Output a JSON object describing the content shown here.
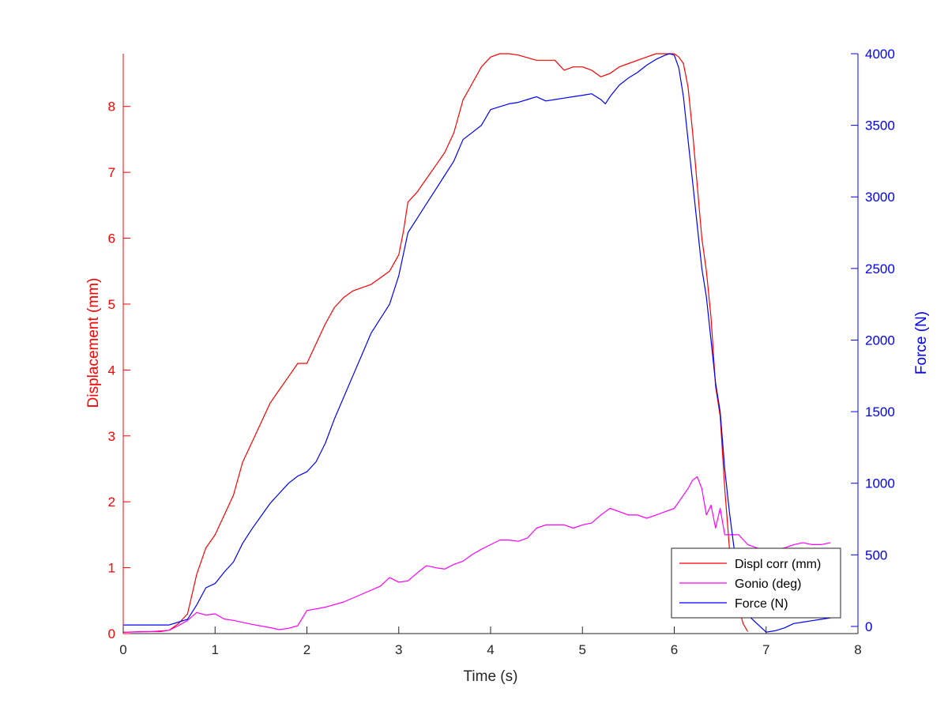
{
  "chart_data": {
    "type": "line",
    "title": "",
    "xlabel": "Time (s)",
    "ylabel_left": "Displacement (mm)",
    "ylabel_right": "Force (N)",
    "xlim": [
      0,
      8
    ],
    "ylim_left": [
      0,
      8.8
    ],
    "ylim_right": [
      -50,
      4000
    ],
    "x_ticks": [
      0,
      1,
      2,
      3,
      4,
      5,
      6,
      7,
      8
    ],
    "y_ticks_left": [
      0,
      1,
      2,
      3,
      4,
      5,
      6,
      7,
      8
    ],
    "y_ticks_right": [
      0,
      500,
      1000,
      1500,
      2000,
      2500,
      3000,
      3500,
      4000
    ],
    "grid": false,
    "legend_position": "bottom-right",
    "colors": {
      "left_axis": "#ff0000",
      "right_axis": "#0000ff",
      "axis": "#262626"
    },
    "series": [
      {
        "name": "Displ corr (mm)",
        "axis": "left",
        "color": "#ff0000",
        "x": [
          0,
          0.2,
          0.4,
          0.5,
          0.6,
          0.7,
          0.75,
          0.8,
          0.9,
          1.0,
          1.1,
          1.2,
          1.3,
          1.4,
          1.5,
          1.6,
          1.7,
          1.8,
          1.9,
          2.0,
          2.1,
          2.2,
          2.3,
          2.4,
          2.5,
          2.6,
          2.7,
          2.8,
          2.9,
          3.0,
          3.05,
          3.1,
          3.2,
          3.3,
          3.4,
          3.5,
          3.6,
          3.7,
          3.8,
          3.9,
          4.0,
          4.1,
          4.2,
          4.3,
          4.5,
          4.7,
          4.8,
          4.9,
          5.0,
          5.1,
          5.2,
          5.3,
          5.4,
          5.5,
          5.6,
          5.7,
          5.8,
          5.9,
          6.0,
          6.05,
          6.1,
          6.15,
          6.2,
          6.25,
          6.3,
          6.35,
          6.4,
          6.45,
          6.5,
          6.55,
          6.6,
          6.65,
          6.7,
          6.75,
          6.8
        ],
        "y": [
          0.02,
          0.03,
          0.03,
          0.05,
          0.15,
          0.3,
          0.6,
          0.9,
          1.3,
          1.5,
          1.8,
          2.1,
          2.6,
          2.9,
          3.2,
          3.5,
          3.7,
          3.9,
          4.1,
          4.1,
          4.4,
          4.7,
          4.95,
          5.1,
          5.2,
          5.25,
          5.3,
          5.4,
          5.5,
          5.75,
          6.1,
          6.55,
          6.7,
          6.9,
          7.1,
          7.3,
          7.6,
          8.1,
          8.35,
          8.6,
          8.75,
          8.8,
          8.8,
          8.78,
          8.7,
          8.7,
          8.55,
          8.6,
          8.6,
          8.55,
          8.45,
          8.5,
          8.6,
          8.65,
          8.7,
          8.75,
          8.8,
          8.8,
          8.8,
          8.75,
          8.65,
          8.3,
          7.6,
          6.8,
          6.0,
          5.5,
          4.8,
          3.75,
          3.3,
          2.2,
          1.3,
          0.8,
          0.4,
          0.15,
          0.03
        ]
      },
      {
        "name": "Gonio (deg)",
        "axis": "left",
        "color": "#ff00ff",
        "x": [
          0,
          0.3,
          0.5,
          0.6,
          0.7,
          0.8,
          0.9,
          1.0,
          1.1,
          1.2,
          1.4,
          1.6,
          1.7,
          1.8,
          1.9,
          2.0,
          2.2,
          2.4,
          2.6,
          2.8,
          2.9,
          3.0,
          3.1,
          3.2,
          3.3,
          3.4,
          3.5,
          3.6,
          3.7,
          3.8,
          3.9,
          4.0,
          4.1,
          4.2,
          4.3,
          4.4,
          4.5,
          4.6,
          4.7,
          4.8,
          4.9,
          5.0,
          5.1,
          5.2,
          5.3,
          5.4,
          5.5,
          5.6,
          5.7,
          5.8,
          5.9,
          6.0,
          6.1,
          6.15,
          6.2,
          6.25,
          6.3,
          6.35,
          6.4,
          6.45,
          6.5,
          6.55,
          6.6,
          6.7,
          6.8,
          6.9,
          7.0,
          7.1,
          7.2,
          7.3,
          7.4,
          7.5,
          7.6,
          7.7
        ],
        "y": [
          0.02,
          0.03,
          0.05,
          0.12,
          0.2,
          0.32,
          0.28,
          0.3,
          0.22,
          0.2,
          0.14,
          0.09,
          0.06,
          0.08,
          0.12,
          0.35,
          0.4,
          0.48,
          0.6,
          0.72,
          0.85,
          0.78,
          0.8,
          0.92,
          1.03,
          1.0,
          0.98,
          1.05,
          1.1,
          1.2,
          1.28,
          1.35,
          1.42,
          1.42,
          1.4,
          1.45,
          1.6,
          1.65,
          1.65,
          1.65,
          1.6,
          1.65,
          1.68,
          1.8,
          1.9,
          1.85,
          1.8,
          1.8,
          1.75,
          1.8,
          1.85,
          1.9,
          2.1,
          2.2,
          2.33,
          2.38,
          2.2,
          1.8,
          1.95,
          1.6,
          1.9,
          1.5,
          1.5,
          1.5,
          1.35,
          1.3,
          1.25,
          1.28,
          1.3,
          1.35,
          1.38,
          1.35,
          1.35,
          1.38
        ]
      },
      {
        "name": "Force (N)",
        "axis": "right",
        "color": "#0000ff",
        "x": [
          0,
          0.3,
          0.5,
          0.6,
          0.7,
          0.8,
          0.9,
          1.0,
          1.1,
          1.2,
          1.3,
          1.4,
          1.5,
          1.6,
          1.7,
          1.8,
          1.9,
          2.0,
          2.1,
          2.2,
          2.3,
          2.4,
          2.5,
          2.6,
          2.7,
          2.8,
          2.9,
          3.0,
          3.05,
          3.1,
          3.2,
          3.3,
          3.4,
          3.5,
          3.6,
          3.7,
          3.8,
          3.9,
          4.0,
          4.1,
          4.2,
          4.3,
          4.4,
          4.5,
          4.6,
          4.7,
          4.8,
          4.9,
          5.0,
          5.1,
          5.2,
          5.25,
          5.3,
          5.4,
          5.5,
          5.6,
          5.7,
          5.8,
          5.9,
          5.95,
          6.0,
          6.05,
          6.1,
          6.15,
          6.2,
          6.25,
          6.3,
          6.35,
          6.4,
          6.45,
          6.5,
          6.55,
          6.6,
          6.65,
          6.7,
          6.8,
          6.9,
          7.0,
          7.1,
          7.2,
          7.3,
          7.4,
          7.5,
          7.6,
          7.7
        ],
        "y": [
          10,
          10,
          10,
          30,
          50,
          150,
          270,
          300,
          380,
          450,
          580,
          680,
          770,
          860,
          930,
          1000,
          1050,
          1080,
          1150,
          1280,
          1450,
          1600,
          1750,
          1900,
          2050,
          2150,
          2250,
          2450,
          2600,
          2750,
          2850,
          2950,
          3050,
          3150,
          3250,
          3400,
          3450,
          3500,
          3610,
          3630,
          3650,
          3660,
          3680,
          3700,
          3670,
          3680,
          3690,
          3700,
          3710,
          3720,
          3680,
          3650,
          3700,
          3780,
          3830,
          3870,
          3920,
          3960,
          3990,
          4000,
          3990,
          3900,
          3700,
          3400,
          3100,
          2800,
          2500,
          2300,
          2000,
          1700,
          1500,
          1100,
          800,
          550,
          300,
          80,
          20,
          -40,
          -30,
          -10,
          20,
          30,
          40,
          50,
          60
        ]
      }
    ]
  }
}
